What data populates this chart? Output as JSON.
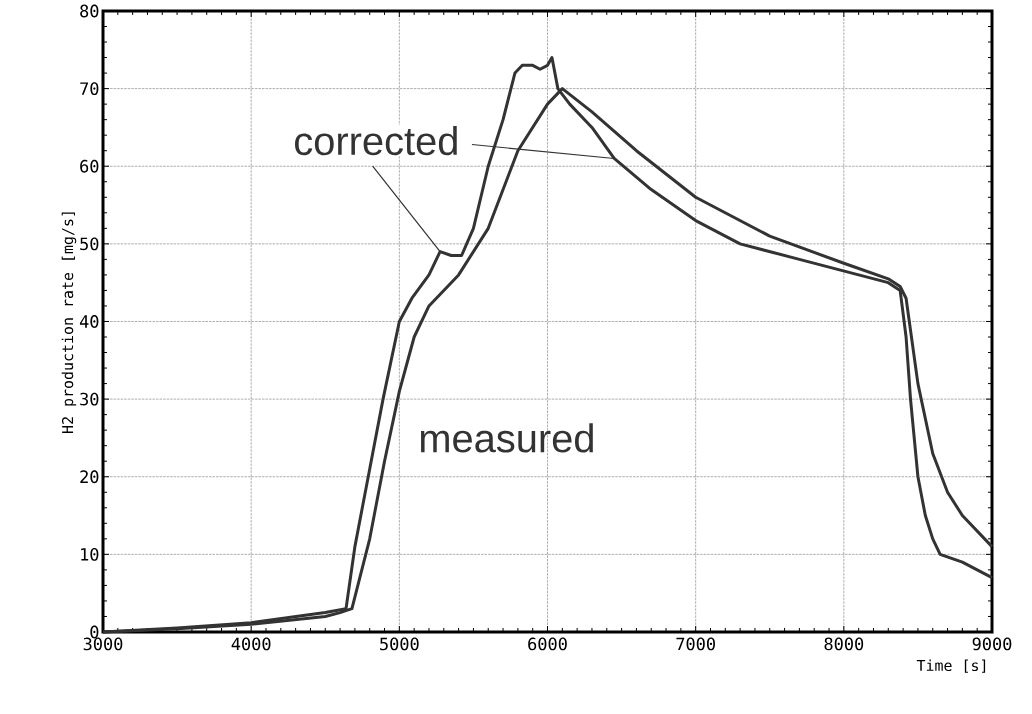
{
  "chart_data": {
    "type": "line",
    "xlabel": "Time [s]",
    "ylabel": "H2 production rate [mg/s]",
    "xlim": [
      3000,
      9000
    ],
    "ylim": [
      0,
      80
    ],
    "xticks": [
      3000,
      4000,
      5000,
      6000,
      7000,
      8000,
      9000
    ],
    "yticks": [
      0,
      10,
      20,
      30,
      40,
      50,
      60,
      70,
      80
    ],
    "grid": true,
    "line_style": "solid",
    "marker": "none",
    "series": [
      {
        "name": "corrected",
        "color": "#333333",
        "x": [
          3000,
          3500,
          4000,
          4500,
          4640,
          4700,
          4800,
          4890,
          5000,
          5085,
          5200,
          5275,
          5350,
          5420,
          5500,
          5600,
          5700,
          5780,
          5830,
          5900,
          5950,
          6000,
          6030,
          6070,
          6150,
          6300,
          6450,
          6700,
          7000,
          7300,
          7700,
          8100,
          8300,
          8380,
          8420,
          8450,
          8500,
          8550,
          8600,
          8650,
          8800,
          9000
        ],
        "values": [
          0,
          0.5,
          1.2,
          2.5,
          3,
          11,
          21,
          30,
          40,
          43,
          46,
          49,
          48.5,
          48.5,
          52,
          60,
          66,
          72,
          73,
          73,
          72.5,
          73,
          74,
          70,
          68,
          65,
          61,
          57,
          53,
          50,
          48,
          46,
          45,
          44,
          38,
          30,
          20,
          15,
          12,
          10,
          9,
          7
        ]
      },
      {
        "name": "measured",
        "color": "#333333",
        "x": [
          3000,
          3500,
          4000,
          4500,
          4600,
          4680,
          4800,
          4900,
          5000,
          5100,
          5200,
          5400,
          5600,
          5800,
          6000,
          6100,
          6300,
          6600,
          7000,
          7500,
          8000,
          8300,
          8380,
          8420,
          8500,
          8600,
          8700,
          8800,
          9000
        ],
        "values": [
          0,
          0.4,
          1,
          2,
          2.5,
          3,
          12,
          22,
          31,
          38,
          42,
          46,
          52,
          62,
          68,
          70,
          67,
          62,
          56,
          51,
          47.5,
          45.5,
          44.5,
          43,
          32,
          23,
          18,
          15,
          11
        ]
      }
    ]
  }
}
